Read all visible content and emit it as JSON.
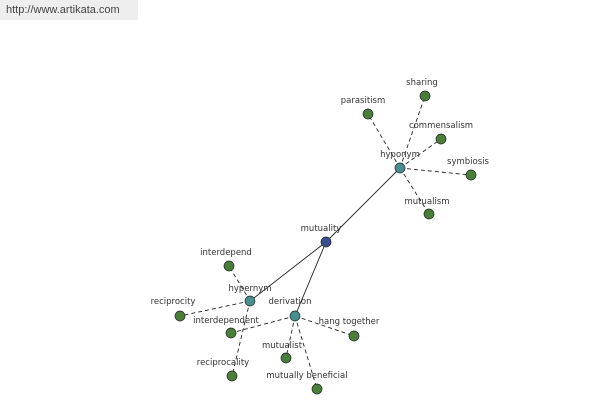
{
  "header": {
    "url": "http://www.artikata.com"
  },
  "nodes": [
    {
      "label": "mutuality"
    },
    {
      "label": "hyponym"
    },
    {
      "label": "hypernym"
    },
    {
      "label": "derivation"
    },
    {
      "label": "sharing"
    },
    {
      "label": "parasitism"
    },
    {
      "label": "commensalism"
    },
    {
      "label": "symbiosis"
    },
    {
      "label": "mutualism"
    },
    {
      "label": "interdepend"
    },
    {
      "label": "reciprocity"
    },
    {
      "label": "reciprocality"
    },
    {
      "label": "interdependent"
    },
    {
      "label": "mutualist"
    },
    {
      "label": "mutually beneficial"
    },
    {
      "label": "hang together"
    }
  ]
}
